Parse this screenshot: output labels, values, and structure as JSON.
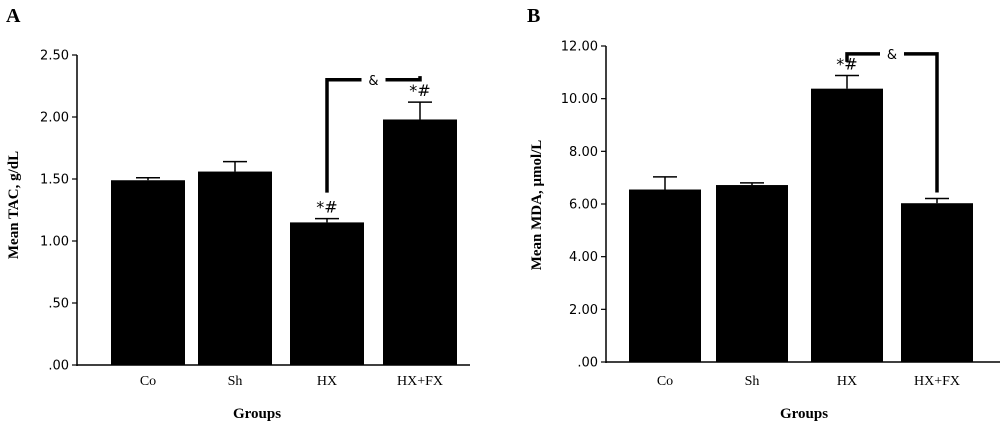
{
  "chart_data": [
    {
      "panel": "A",
      "type": "bar",
      "categories": [
        "Co",
        "Sh",
        "HX",
        "HX+FX"
      ],
      "values": [
        1.49,
        1.56,
        1.15,
        1.98
      ],
      "errors": [
        0.02,
        0.08,
        0.03,
        0.14
      ],
      "xlabel": "Groups",
      "ylabel": "Mean TAC, g/dL",
      "ylim": [
        0,
        2.5
      ],
      "yticks": [
        0,
        0.5,
        1.0,
        1.5,
        2.0,
        2.5
      ],
      "ytick_labels": [
        ".00",
        ".50",
        "1.00",
        "1.50",
        "2.00",
        "2.50"
      ],
      "markers": [
        "",
        "",
        "*#",
        "*#"
      ],
      "bracket": {
        "from": "HX",
        "to": "HX+FX",
        "label": "&",
        "value": 2.3
      },
      "bar_color": "#000000"
    },
    {
      "panel": "B",
      "type": "bar",
      "categories": [
        "Co",
        "Sh",
        "HX",
        "HX+FX"
      ],
      "values": [
        6.55,
        6.72,
        10.38,
        6.03
      ],
      "errors": [
        0.48,
        0.08,
        0.5,
        0.18
      ],
      "xlabel": "Groups",
      "ylabel": "Mean MDA, μmol/L",
      "ylim": [
        0,
        12
      ],
      "yticks": [
        0,
        2,
        4,
        6,
        8,
        10,
        12
      ],
      "ytick_labels": [
        ".00",
        "2.00",
        "4.00",
        "6.00",
        "8.00",
        "10.00",
        "12.00"
      ],
      "markers": [
        "",
        "",
        "*#",
        ""
      ],
      "bracket": {
        "from": "HX",
        "to": "HX+FX",
        "label": "&",
        "value": 11.7
      },
      "bar_color": "#000000"
    }
  ]
}
